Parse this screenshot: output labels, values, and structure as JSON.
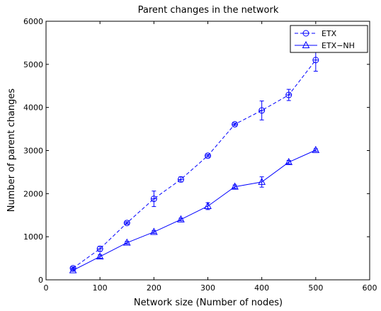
{
  "chart_data": {
    "type": "line",
    "title": "Parent changes in the network",
    "xlabel": "Network size (Number of nodes)",
    "ylabel": "Number of parent changes",
    "xlim": [
      0,
      600
    ],
    "ylim": [
      0,
      6000
    ],
    "xticks": [
      0,
      100,
      200,
      300,
      400,
      500,
      600
    ],
    "yticks": [
      0,
      1000,
      2000,
      3000,
      4000,
      5000,
      6000
    ],
    "grid": false,
    "legend_position": "top-right",
    "x": [
      50,
      100,
      150,
      200,
      250,
      300,
      350,
      400,
      450,
      500
    ],
    "series": [
      {
        "name": "ETX",
        "color": "#0000ff",
        "line_style": "dashed",
        "marker": "circle",
        "values": [
          270,
          720,
          1320,
          1880,
          2330,
          2880,
          3610,
          3930,
          4290,
          5100
        ],
        "error": [
          30,
          60,
          30,
          180,
          60,
          30,
          30,
          220,
          130,
          260
        ]
      },
      {
        "name": "ETX−NH",
        "color": "#0000ff",
        "line_style": "solid",
        "marker": "triangle",
        "values": [
          220,
          540,
          860,
          1110,
          1400,
          1710,
          2160,
          2270,
          2730,
          3010
        ],
        "error": [
          20,
          40,
          30,
          30,
          30,
          80,
          40,
          120,
          40,
          30
        ]
      }
    ]
  }
}
